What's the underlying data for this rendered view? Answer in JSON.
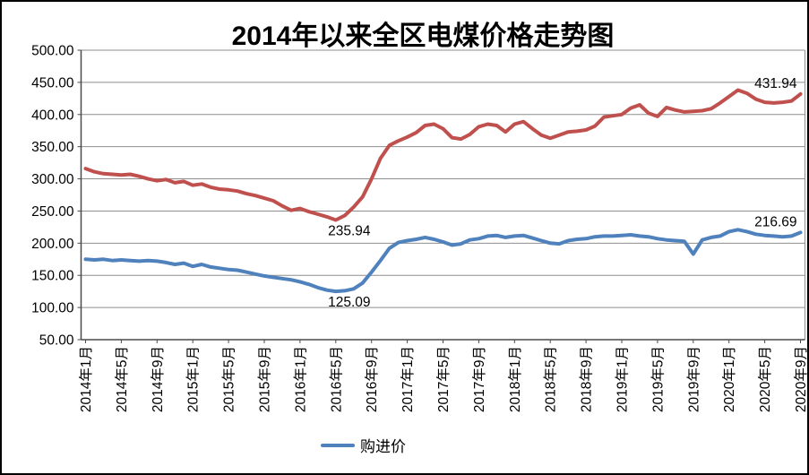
{
  "legend": {
    "label": "购进价",
    "color": "#4F81BD"
  },
  "chart_data": {
    "type": "line",
    "title": "2014年以来全区电煤价格走势图",
    "ylim": [
      50,
      500
    ],
    "ytick_step": 50,
    "ytick_labels": [
      "500.00",
      "450.00",
      "400.00",
      "350.00",
      "300.00",
      "250.00",
      "200.00",
      "150.00",
      "100.00",
      "50.00"
    ],
    "grid": true,
    "legend_position": "bottom",
    "x_tick_interval_months": 4,
    "x_tick_labels": [
      "2014年1月",
      "2014年5月",
      "2014年9月",
      "2015年1月",
      "2015年5月",
      "2015年9月",
      "2016年1月",
      "2016年5月",
      "2016年9月",
      "2017年1月",
      "2017年5月",
      "2017年9月",
      "2018年1月",
      "2018年5月",
      "2018年9月",
      "2019年1月",
      "2019年5月",
      "2019年9月",
      "2020年1月",
      "2020年5月",
      "2020年9月"
    ],
    "series": [
      {
        "color": "#C0504D",
        "values": [
          316,
          311,
          308,
          307,
          306,
          307,
          304,
          300,
          297,
          299,
          294,
          296,
          290,
          292,
          287,
          284,
          283,
          281,
          277,
          274,
          270,
          266,
          258,
          251,
          254,
          249,
          245,
          241,
          235.94,
          243,
          256,
          272,
          300,
          332,
          352,
          359,
          365,
          372,
          383,
          385,
          378,
          364,
          362,
          369,
          381,
          385,
          383,
          373,
          385,
          389,
          378,
          368,
          363,
          368,
          373,
          374,
          376,
          382,
          396,
          398,
          400,
          410,
          415,
          402,
          397,
          411,
          407,
          404,
          405,
          406,
          409,
          418,
          428,
          438,
          433,
          424,
          419,
          418,
          419,
          421,
          431.94
        ],
        "labels": [
          {
            "index": 28,
            "text": "235.94",
            "placement": "below"
          },
          {
            "index": 80,
            "text": "431.94",
            "placement": "end-above"
          }
        ]
      },
      {
        "name": "购进价",
        "color": "#4F81BD",
        "values": [
          175,
          174,
          175,
          173,
          174,
          173,
          172,
          173,
          172,
          170,
          167,
          169,
          164,
          167,
          163,
          161,
          159,
          158,
          155,
          152,
          149,
          147,
          145,
          143,
          140,
          136,
          131,
          127,
          125.09,
          126,
          129,
          138,
          155,
          173,
          192,
          201,
          204,
          206,
          209,
          206,
          202,
          197,
          199,
          205,
          207,
          211,
          212,
          209,
          211,
          212,
          208,
          204,
          200,
          199,
          204,
          206,
          207,
          210,
          211,
          211,
          212,
          213,
          211,
          210,
          207,
          205,
          204,
          203,
          183,
          205,
          209,
          211,
          218,
          221,
          218,
          214,
          212,
          211,
          210,
          211,
          216.69
        ],
        "labels": [
          {
            "index": 28,
            "text": "125.09",
            "placement": "below"
          },
          {
            "index": 80,
            "text": "216.69",
            "placement": "end-above"
          }
        ]
      }
    ]
  }
}
